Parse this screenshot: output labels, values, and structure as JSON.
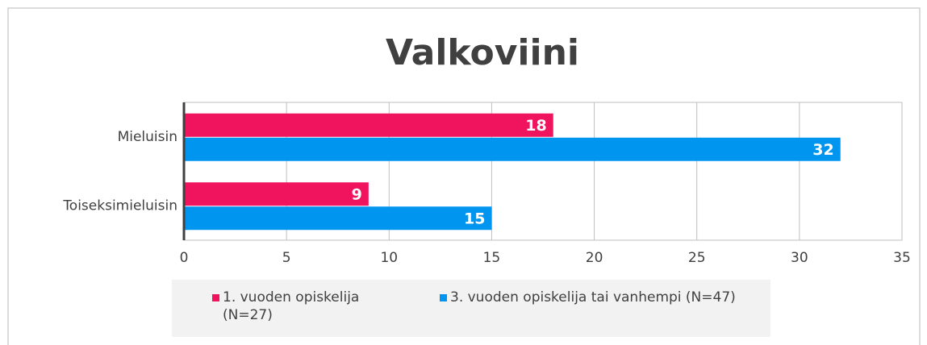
{
  "chart_data": {
    "type": "hbar",
    "title": "Valkoviini",
    "categories": [
      "Mieluisin",
      "Toiseksimieluisin"
    ],
    "series": [
      {
        "name": "1. vuoden opiskelija (N=27)",
        "color": "#f0145f",
        "values": [
          18,
          9
        ]
      },
      {
        "name": "3. vuoden opiskelija tai vanhempi (N=47)",
        "color": "#0096f0",
        "values": [
          32,
          15
        ]
      }
    ],
    "xlim": [
      0,
      35
    ],
    "xticks": [
      0,
      5,
      10,
      15,
      20,
      25,
      30,
      35
    ],
    "grid": true,
    "legend": "bottom"
  }
}
